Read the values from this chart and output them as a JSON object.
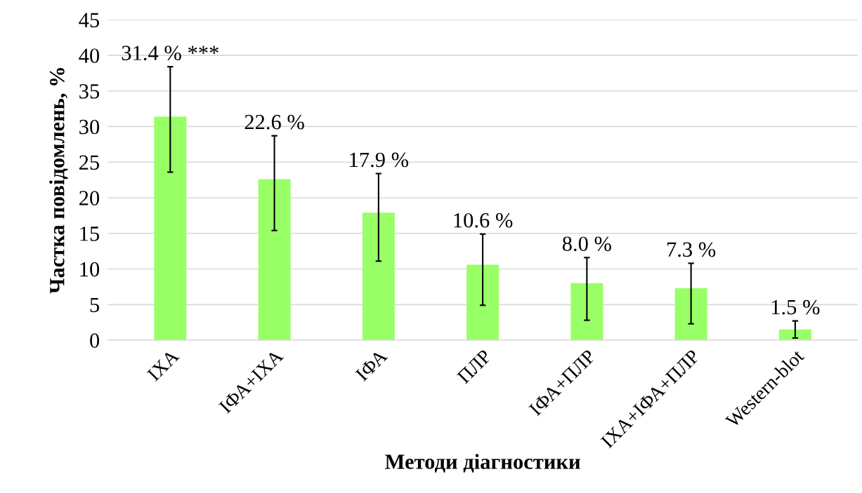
{
  "chart_data": {
    "type": "bar",
    "xlabel": "Методи діагностики",
    "ylabel": "Частка повідомлень, %",
    "categories": [
      "ІХА",
      "ІФА+ІХА",
      "ІФА",
      "ПЛР",
      "ІФА+ПЛР",
      "ІХА+ІФА+ПЛР",
      "Western-blot"
    ],
    "values": [
      31.4,
      22.6,
      17.9,
      10.6,
      8.0,
      7.3,
      1.5
    ],
    "errors": [
      [
        23.6,
        38.4
      ],
      [
        15.4,
        28.7
      ],
      [
        11.1,
        23.4
      ],
      [
        4.9,
        14.9
      ],
      [
        2.8,
        11.6
      ],
      [
        2.3,
        10.8
      ],
      [
        0.3,
        2.7
      ]
    ],
    "value_labels": [
      "31.4 % ***",
      "22.6 %",
      "17.9 %",
      "10.6 %",
      "8.0 %",
      "7.3 %",
      "1.5 %"
    ],
    "color": "#99ff66",
    "ylim": [
      0,
      45
    ],
    "yticks": [
      0,
      5,
      10,
      15,
      20,
      25,
      30,
      35,
      40,
      45
    ],
    "grid": "y",
    "legend": false
  }
}
